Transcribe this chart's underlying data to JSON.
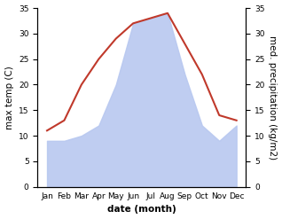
{
  "months": [
    "Jan",
    "Feb",
    "Mar",
    "Apr",
    "May",
    "Jun",
    "Jul",
    "Aug",
    "Sep",
    "Oct",
    "Nov",
    "Dec"
  ],
  "temperature": [
    11,
    13,
    20,
    25,
    29,
    32,
    33,
    34,
    28,
    22,
    14,
    13
  ],
  "precipitation": [
    9,
    9,
    10,
    12,
    20,
    32,
    33,
    34,
    22,
    12,
    9,
    12
  ],
  "temp_color": "#c0392b",
  "precip_color": "#b8c8f0",
  "background_color": "#ffffff",
  "ylabel_left": "max temp (C)",
  "ylabel_right": "med. precipitation (kg/m2)",
  "xlabel": "date (month)",
  "ylim": [
    0,
    35
  ],
  "yticks": [
    0,
    5,
    10,
    15,
    20,
    25,
    30,
    35
  ],
  "label_fontsize": 7.5,
  "tick_fontsize": 6.5,
  "line_width": 1.5,
  "xlabel_fontsize": 7.5,
  "xlabel_fontweight": "bold"
}
